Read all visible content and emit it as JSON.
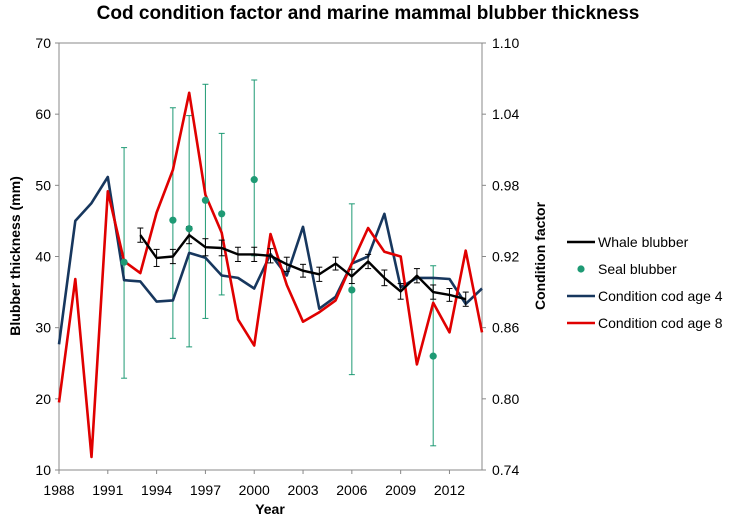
{
  "chart_data": {
    "type": "line",
    "title": "Cod condition factor and marine mammal blubber thickness",
    "xlabel": "Year",
    "ylabel": "Blubber thickness (mm)",
    "y2label": "Condition factor",
    "xlim": [
      1988,
      2014
    ],
    "ylim": [
      10,
      70
    ],
    "y2lim": [
      0.74,
      1.1
    ],
    "x_ticks": [
      1988,
      1991,
      1994,
      1997,
      2000,
      2003,
      2006,
      2009,
      2012
    ],
    "y_ticks": [
      10,
      20,
      30,
      40,
      50,
      60,
      70
    ],
    "y2_ticks": [
      "0.74",
      "0.80",
      "0.86",
      "0.92",
      "0.98",
      "1.04",
      "1.10"
    ],
    "legend_position": "right",
    "series": [
      {
        "name": "Whale blubber",
        "axis": "left",
        "style": "line-errorbars",
        "color": "#000000",
        "x": [
          1993,
          1994,
          1995,
          1996,
          1997,
          1998,
          1999,
          2000,
          2001,
          2002,
          2003,
          2004,
          2005,
          2006,
          2007,
          2008,
          2009,
          2010,
          2011,
          2012,
          2013
        ],
        "values": [
          43.0,
          39.8,
          40.0,
          43.0,
          41.3,
          41.2,
          40.3,
          40.3,
          40.1,
          38.9,
          38.0,
          37.5,
          39.0,
          37.2,
          39.3,
          37.0,
          35.1,
          37.3,
          35.0,
          34.6,
          34.0
        ],
        "err": [
          1.0,
          1.2,
          1.0,
          1.2,
          1.2,
          1.1,
          1.0,
          1.0,
          1.0,
          1.0,
          0.9,
          1.0,
          0.9,
          1.0,
          1.0,
          1.1,
          1.1,
          1.0,
          1.0,
          0.9,
          1.0
        ]
      },
      {
        "name": "Seal blubber",
        "axis": "left",
        "style": "points-errorbars",
        "color": "#1e9a74",
        "x": [
          1992,
          1995,
          1996,
          1997,
          1998,
          2000,
          2006,
          2011
        ],
        "values": [
          39.2,
          45.1,
          43.9,
          47.9,
          46.0,
          50.8,
          35.3,
          26.0
        ],
        "err_low": [
          16.3,
          16.6,
          16.6,
          16.6,
          11.4,
          10.7,
          11.9,
          12.6
        ],
        "err_high": [
          16.1,
          15.8,
          15.9,
          16.3,
          11.3,
          14.0,
          12.1,
          12.7
        ]
      },
      {
        "name": "Condition cod age 4",
        "axis": "right",
        "style": "line",
        "color": "#17375e",
        "x": [
          1988,
          1989,
          1990,
          1991,
          1992,
          1993,
          1994,
          1995,
          1996,
          1997,
          1998,
          1999,
          2000,
          2001,
          2002,
          2003,
          2004,
          2005,
          2006,
          2007,
          2008,
          2009,
          2010,
          2011,
          2012,
          2013,
          2014
        ],
        "values": [
          0.846,
          0.95,
          0.965,
          0.987,
          0.9,
          0.899,
          0.882,
          0.883,
          0.923,
          0.919,
          0.904,
          0.902,
          0.893,
          0.922,
          0.904,
          0.945,
          0.876,
          0.886,
          0.914,
          0.92,
          0.956,
          0.894,
          0.902,
          0.902,
          0.901,
          0.88,
          0.893
        ]
      },
      {
        "name": "Condition cod age 8",
        "axis": "right",
        "style": "line",
        "color": "#e00000",
        "x": [
          1988,
          1989,
          1990,
          1991,
          1992,
          1993,
          1994,
          1995,
          1996,
          1997,
          1998,
          1999,
          2000,
          2001,
          2002,
          2003,
          2004,
          2005,
          2006,
          2007,
          2008,
          2009,
          2010,
          2011,
          2012,
          2013,
          2014
        ],
        "values": [
          0.797,
          0.901,
          0.751,
          0.975,
          0.916,
          0.906,
          0.957,
          0.993,
          1.058,
          0.972,
          0.94,
          0.867,
          0.845,
          0.939,
          0.896,
          0.865,
          0.873,
          0.883,
          0.914,
          0.944,
          0.924,
          0.92,
          0.829,
          0.881,
          0.856,
          0.925,
          0.856
        ]
      }
    ]
  }
}
